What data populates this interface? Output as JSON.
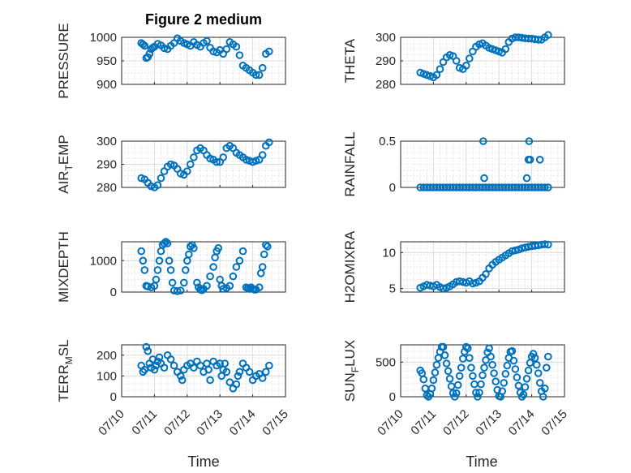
{
  "figure": {
    "title": "Figure 2 medium",
    "x_label": "Time",
    "x_ticks": [
      "07/10",
      "07/11",
      "07/12",
      "07/13",
      "07/14",
      "07/15"
    ],
    "marker_color": "#0072BD"
  },
  "chart_data": [
    {
      "type": "scatter",
      "ylabel": "PRESSURE",
      "xlim": [
        "07/10",
        "07/15"
      ],
      "ylim": [
        900,
        1000
      ],
      "yticks": [
        {
          "v": 900,
          "label": "900"
        },
        {
          "v": 950,
          "label": "950"
        },
        {
          "v": 1000,
          "label": "1000"
        }
      ],
      "x": [
        10.6,
        10.65,
        10.7,
        10.75,
        10.8,
        10.85,
        10.9,
        10.95,
        11.0,
        11.1,
        11.2,
        11.3,
        11.4,
        11.5,
        11.6,
        11.7,
        11.8,
        11.9,
        12.0,
        12.1,
        12.2,
        12.3,
        12.4,
        12.5,
        12.6,
        12.7,
        12.8,
        12.9,
        13.0,
        13.1,
        13.2,
        13.3,
        13.4,
        13.5,
        13.6,
        13.7,
        13.8,
        13.9,
        14.0,
        14.1,
        14.2,
        14.3,
        14.4,
        14.5
      ],
      "y": [
        988,
        985,
        982,
        956,
        958,
        965,
        975,
        978,
        980,
        986,
        983,
        977,
        975,
        982,
        988,
        998,
        992,
        988,
        985,
        982,
        990,
        984,
        980,
        988,
        992,
        978,
        970,
        968,
        973,
        965,
        975,
        990,
        985,
        980,
        962,
        940,
        935,
        930,
        925,
        920,
        920,
        935,
        965,
        970
      ]
    },
    {
      "type": "scatter",
      "ylabel": "THETA",
      "xlim": [
        "07/10",
        "07/15"
      ],
      "ylim": [
        280,
        300
      ],
      "yticks": [
        {
          "v": 280,
          "label": "280"
        },
        {
          "v": 290,
          "label": "290"
        },
        {
          "v": 300,
          "label": "300"
        }
      ],
      "x": [
        10.6,
        10.7,
        10.8,
        10.9,
        11.0,
        11.1,
        11.2,
        11.3,
        11.4,
        11.5,
        11.6,
        11.7,
        11.8,
        11.9,
        12.0,
        12.1,
        12.2,
        12.3,
        12.4,
        12.5,
        12.6,
        12.7,
        12.8,
        12.9,
        13.0,
        13.1,
        13.2,
        13.3,
        13.4,
        13.5,
        13.6,
        13.7,
        13.8,
        13.9,
        14.0,
        14.1,
        14.2,
        14.3,
        14.4,
        14.5
      ],
      "y": [
        285,
        284.5,
        284,
        283.5,
        283,
        284,
        286.5,
        289.5,
        291.5,
        292.5,
        292,
        290,
        287,
        286.5,
        288,
        291,
        294,
        296,
        297,
        297.5,
        296.5,
        295.5,
        295,
        294.5,
        294,
        293.5,
        295,
        298,
        299.5,
        300,
        300,
        299.8,
        299.6,
        299.5,
        299.4,
        299.2,
        299,
        299,
        300,
        301
      ]
    },
    {
      "type": "scatter",
      "ylabel": "AIR_TEMP",
      "xlim": [
        "07/10",
        "07/15"
      ],
      "ylim": [
        280,
        300
      ],
      "yticks": [
        {
          "v": 280,
          "label": "280"
        },
        {
          "v": 290,
          "label": "290"
        },
        {
          "v": 300,
          "label": "300"
        }
      ],
      "x": [
        10.6,
        10.7,
        10.8,
        10.9,
        11.0,
        11.1,
        11.2,
        11.3,
        11.4,
        11.5,
        11.6,
        11.7,
        11.8,
        11.9,
        12.0,
        12.1,
        12.2,
        12.3,
        12.4,
        12.5,
        12.6,
        12.7,
        12.8,
        12.9,
        13.0,
        13.1,
        13.2,
        13.3,
        13.4,
        13.5,
        13.6,
        13.7,
        13.8,
        13.9,
        14.0,
        14.1,
        14.2,
        14.3,
        14.4,
        14.5
      ],
      "y": [
        284,
        283.5,
        282,
        280.5,
        280,
        281,
        284,
        287,
        289,
        290,
        289.5,
        288,
        286,
        285.5,
        287,
        290,
        293,
        296,
        297,
        296,
        294,
        292.5,
        292,
        291,
        291,
        293,
        297,
        298,
        297,
        295,
        294,
        293,
        292,
        291.5,
        291,
        291.5,
        292,
        294,
        298,
        299.5
      ]
    },
    {
      "type": "scatter",
      "ylabel": "RAINFALL",
      "xlim": [
        "07/10",
        "07/15"
      ],
      "ylim": [
        0,
        0.5
      ],
      "yticks": [
        {
          "v": 0,
          "label": "0"
        },
        {
          "v": 0.5,
          "label": "0.5"
        }
      ],
      "x": [
        10.6,
        10.7,
        10.8,
        10.9,
        11.0,
        11.1,
        11.2,
        11.3,
        11.4,
        11.5,
        11.6,
        11.7,
        11.8,
        11.9,
        12.0,
        12.1,
        12.2,
        12.3,
        12.4,
        12.5,
        12.6,
        12.7,
        12.8,
        12.9,
        13.0,
        13.1,
        13.2,
        13.3,
        13.4,
        13.5,
        13.6,
        13.7,
        13.8,
        13.9,
        14.0,
        14.1,
        14.2,
        14.3,
        14.4,
        14.5,
        12.52,
        12.55,
        13.85,
        13.9,
        13.92,
        13.95,
        14.25
      ],
      "y": [
        0,
        0,
        0,
        0,
        0,
        0,
        0,
        0,
        0,
        0,
        0,
        0,
        0,
        0,
        0,
        0,
        0,
        0,
        0,
        0,
        0,
        0,
        0,
        0,
        0,
        0,
        0,
        0,
        0,
        0,
        0,
        0,
        0,
        0,
        0,
        0,
        0,
        0,
        0,
        0,
        0.5,
        0.1,
        0.1,
        0.3,
        0.5,
        0.3,
        0.3
      ]
    },
    {
      "type": "scatter",
      "ylabel": "MIXDEPTH",
      "xlim": [
        "07/10",
        "07/15"
      ],
      "ylim": [
        0,
        1600
      ],
      "yticks": [
        {
          "v": 0,
          "label": "0"
        },
        {
          "v": 1000,
          "label": "1000"
        }
      ],
      "x": [
        10.6,
        10.65,
        10.7,
        10.75,
        10.8,
        10.9,
        11.0,
        11.05,
        11.1,
        11.15,
        11.2,
        11.25,
        11.3,
        11.35,
        11.4,
        11.45,
        11.5,
        11.55,
        11.6,
        11.7,
        11.8,
        11.9,
        11.95,
        12.0,
        12.05,
        12.1,
        12.15,
        12.2,
        12.3,
        12.35,
        12.4,
        12.45,
        12.5,
        12.6,
        12.7,
        12.8,
        12.85,
        12.9,
        12.95,
        13.0,
        13.05,
        13.1,
        13.2,
        13.3,
        13.4,
        13.5,
        13.6,
        13.7,
        13.8,
        13.85,
        13.9,
        13.95,
        14.0,
        14.05,
        14.1,
        14.2,
        14.25,
        14.3,
        14.35,
        14.4,
        14.45
      ],
      "y": [
        1300,
        1000,
        700,
        200,
        180,
        150,
        200,
        400,
        700,
        1000,
        1300,
        1500,
        1550,
        1600,
        1550,
        1000,
        700,
        300,
        50,
        30,
        50,
        300,
        700,
        1000,
        1200,
        1450,
        1500,
        1400,
        300,
        150,
        80,
        60,
        100,
        200,
        500,
        800,
        1100,
        1300,
        1400,
        400,
        200,
        100,
        130,
        200,
        500,
        800,
        1000,
        1300,
        150,
        120,
        100,
        150,
        100,
        80,
        80,
        150,
        600,
        800,
        1200,
        1500,
        1450
      ]
    },
    {
      "type": "scatter",
      "ylabel": "H2OMIXRA",
      "xlim": [
        "07/10",
        "07/15"
      ],
      "ylim": [
        4.5,
        11.5
      ],
      "yticks": [
        {
          "v": 5,
          "label": "5"
        },
        {
          "v": 10,
          "label": "10"
        }
      ],
      "x": [
        10.6,
        10.7,
        10.8,
        10.9,
        11.0,
        11.1,
        11.2,
        11.3,
        11.4,
        11.5,
        11.6,
        11.7,
        11.8,
        11.9,
        12.0,
        12.1,
        12.2,
        12.3,
        12.4,
        12.5,
        12.6,
        12.7,
        12.8,
        12.9,
        13.0,
        13.1,
        13.2,
        13.3,
        13.4,
        13.5,
        13.6,
        13.7,
        13.8,
        13.9,
        14.0,
        14.1,
        14.2,
        14.3,
        14.4,
        14.5
      ],
      "y": [
        5.1,
        5.3,
        5.5,
        5.4,
        5.3,
        5.5,
        5.2,
        5.0,
        5.1,
        5.3,
        5.6,
        5.9,
        6.0,
        5.9,
        5.8,
        6.0,
        5.7,
        5.8,
        6.0,
        6.5,
        7.0,
        7.8,
        8.3,
        8.7,
        9.0,
        9.3,
        9.6,
        9.9,
        10.2,
        10.3,
        10.4,
        10.6,
        10.7,
        10.8,
        10.9,
        10.95,
        11.0,
        11.1,
        11.15,
        11.1
      ]
    },
    {
      "type": "scatter",
      "ylabel": "TERR_MSL",
      "xlim": [
        "07/10",
        "07/15"
      ],
      "ylim": [
        0,
        250
      ],
      "yticks": [
        {
          "v": 0,
          "label": "0"
        },
        {
          "v": 100,
          "label": "100"
        },
        {
          "v": 200,
          "label": "200"
        }
      ],
      "x": [
        10.6,
        10.65,
        10.7,
        10.75,
        10.8,
        10.85,
        10.9,
        10.95,
        11.0,
        11.05,
        11.1,
        11.15,
        11.2,
        11.3,
        11.4,
        11.5,
        11.6,
        11.7,
        11.8,
        11.85,
        11.9,
        12.0,
        12.1,
        12.2,
        12.3,
        12.4,
        12.5,
        12.6,
        12.65,
        12.7,
        12.8,
        12.9,
        13.0,
        13.05,
        13.1,
        13.15,
        13.2,
        13.3,
        13.4,
        13.5,
        13.55,
        13.6,
        13.7,
        13.8,
        13.9,
        14.0,
        14.1,
        14.2,
        14.3,
        14.4,
        14.5
      ],
      "y": [
        150,
        120,
        130,
        240,
        220,
        160,
        140,
        180,
        130,
        150,
        170,
        190,
        160,
        140,
        200,
        180,
        150,
        120,
        100,
        80,
        130,
        150,
        160,
        140,
        170,
        150,
        120,
        160,
        130,
        80,
        170,
        150,
        160,
        100,
        130,
        160,
        120,
        70,
        40,
        60,
        100,
        120,
        160,
        140,
        120,
        80,
        100,
        110,
        90,
        120,
        150
      ]
    },
    {
      "type": "scatter",
      "ylabel": "SUN_FLUX",
      "xlim": [
        "07/10",
        "07/15"
      ],
      "ylim": [
        0,
        750
      ],
      "yticks": [
        {
          "v": 0,
          "label": "0"
        },
        {
          "v": 500,
          "label": "500"
        }
      ],
      "x": [
        10.6,
        10.65,
        10.7,
        10.75,
        10.8,
        10.85,
        10.9,
        10.95,
        11.0,
        11.05,
        11.1,
        11.15,
        11.2,
        11.25,
        11.3,
        11.35,
        11.4,
        11.45,
        11.5,
        11.55,
        11.6,
        11.65,
        11.7,
        11.75,
        11.8,
        11.85,
        11.9,
        11.95,
        12.0,
        12.05,
        12.1,
        12.15,
        12.2,
        12.25,
        12.3,
        12.35,
        12.4,
        12.45,
        12.5,
        12.55,
        12.6,
        12.65,
        12.7,
        12.75,
        12.8,
        12.85,
        12.9,
        12.95,
        13.0,
        13.05,
        13.1,
        13.15,
        13.2,
        13.25,
        13.3,
        13.35,
        13.4,
        13.45,
        13.5,
        13.55,
        13.6,
        13.65,
        13.7,
        13.75,
        13.8,
        13.85,
        13.9,
        13.95,
        14.0,
        14.05,
        14.1,
        14.15,
        14.2,
        14.25,
        14.3,
        14.35,
        14.4,
        14.45,
        14.5
      ],
      "y": [
        380,
        340,
        250,
        120,
        20,
        0,
        40,
        120,
        240,
        350,
        460,
        560,
        650,
        720,
        720,
        600,
        480,
        370,
        260,
        150,
        50,
        0,
        50,
        170,
        300,
        420,
        550,
        650,
        720,
        700,
        560,
        420,
        300,
        180,
        60,
        0,
        60,
        180,
        310,
        420,
        530,
        640,
        700,
        580,
        460,
        340,
        220,
        100,
        10,
        0,
        80,
        200,
        330,
        450,
        560,
        650,
        660,
        520,
        400,
        280,
        160,
        60,
        0,
        30,
        140,
        260,
        380,
        490,
        580,
        620,
        560,
        460,
        340,
        200,
        80,
        0,
        120,
        420,
        580
      ]
    }
  ]
}
